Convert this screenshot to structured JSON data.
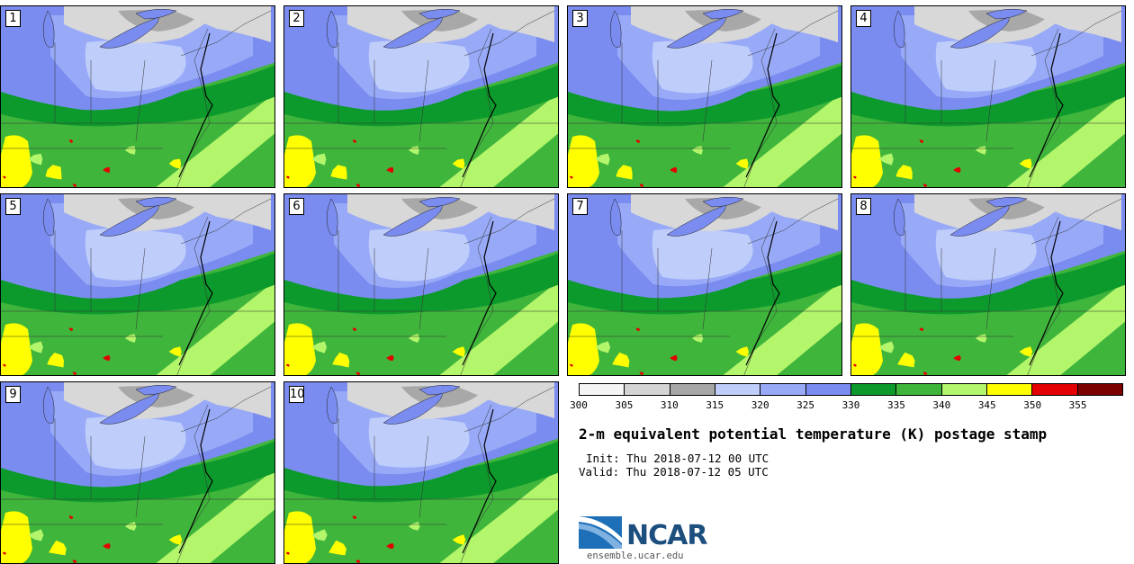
{
  "panels": [
    {
      "label": "1"
    },
    {
      "label": "2"
    },
    {
      "label": "3"
    },
    {
      "label": "4"
    },
    {
      "label": "5"
    },
    {
      "label": "6"
    },
    {
      "label": "7"
    },
    {
      "label": "8"
    },
    {
      "label": "9"
    },
    {
      "label": "10"
    }
  ],
  "colorbar": {
    "colors": [
      "#f5f5f5",
      "#d4d4d4",
      "#a6a6a6",
      "#bfcdfa",
      "#98aaf7",
      "#7a8cf0",
      "#0d9a2c",
      "#3fb53c",
      "#b3f56b",
      "#ffff00",
      "#e20000",
      "#7d0000"
    ],
    "ticks": [
      "300",
      "305",
      "310",
      "315",
      "320",
      "325",
      "330",
      "335",
      "340",
      "345",
      "350",
      "355"
    ]
  },
  "map_colors": {
    "water_lake": "#7a8cf0",
    "gray_light": "#d8d8d8",
    "gray_dark": "#a8a8a8",
    "blue_light": "#bfcdfa",
    "blue_mid": "#98aaf7",
    "blue_dark": "#7a8cf0",
    "green_dark": "#0d9a2c",
    "green_mid": "#3fb53c",
    "green_light": "#b3f56b",
    "yellow": "#ffff00",
    "red": "#e20000",
    "dark_red": "#7d0000"
  },
  "title": "2-m equivalent potential temperature (K) postage stamp",
  "init_text": "Init: Thu 2018-07-12 00 UTC",
  "valid_text": "Valid: Thu 2018-07-12 05 UTC",
  "logo_text": "NCAR",
  "url_text": "ensemble.ucar.edu"
}
